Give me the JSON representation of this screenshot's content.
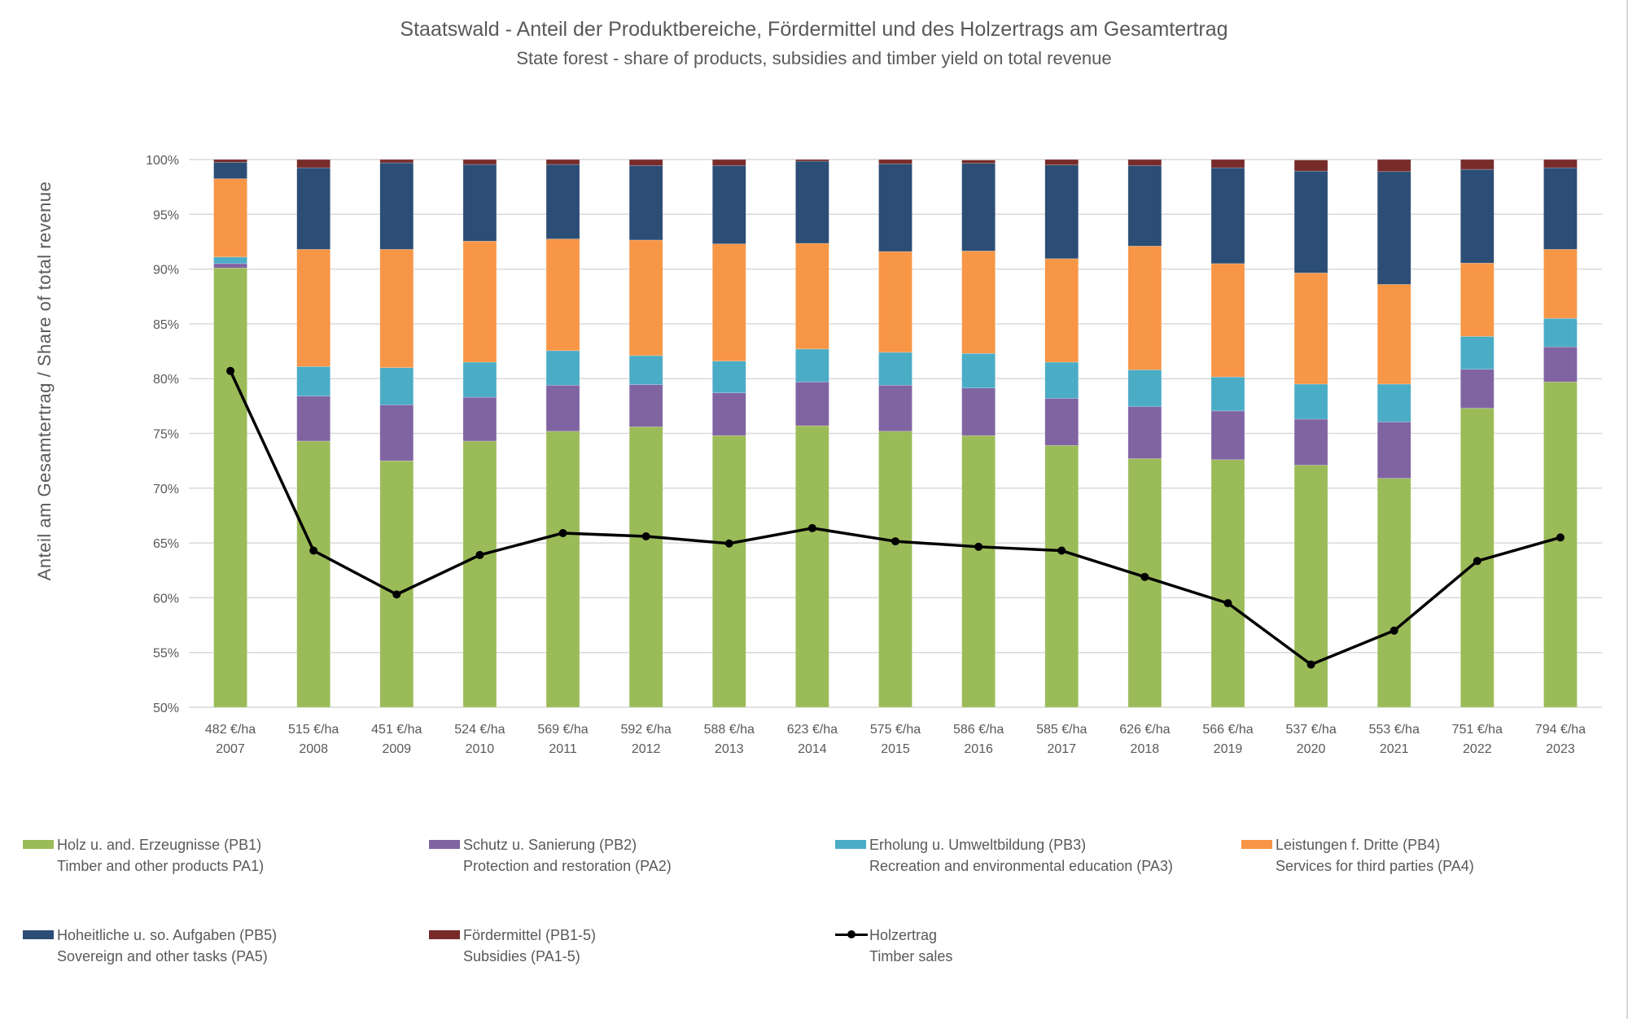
{
  "chart_data": {
    "type": "bar",
    "stacked": true,
    "title": "Staatswald - Anteil der Produktbereiche, Fördermittel und des Holzertrags am Gesamtertrag",
    "subtitle": "State forest - share of products, subsidies and timber yield on total revenue",
    "xlabel": "",
    "ylabel": "Anteil am Gesamtertrag / Share of total revenue",
    "ylim": [
      50,
      100
    ],
    "yticks": [
      "50%",
      "55%",
      "60%",
      "65%",
      "70%",
      "75%",
      "80%",
      "85%",
      "90%",
      "95%",
      "100%"
    ],
    "ytick_values": [
      50,
      55,
      60,
      65,
      70,
      75,
      80,
      85,
      90,
      95,
      100
    ],
    "grid": true,
    "legend_position": "bottom",
    "categories": [
      "2007",
      "2008",
      "2009",
      "2010",
      "2011",
      "2012",
      "2013",
      "2014",
      "2015",
      "2016",
      "2017",
      "2018",
      "2019",
      "2020",
      "2021",
      "2022",
      "2023"
    ],
    "category_values_per_ha": [
      "482 €/ha",
      "515 €/ha",
      "451 €/ha",
      "524 €/ha",
      "569 €/ha",
      "592 €/ha",
      "588 €/ha",
      "623 €/ha",
      "575 €/ha",
      "586 €/ha",
      "585 €/ha",
      "626 €/ha",
      "566 €/ha",
      "537 €/ha",
      "553 €/ha",
      "751 €/ha",
      "794 €/ha"
    ],
    "series": [
      {
        "name": "Holz u. and. Erzeugnisse (PB1)",
        "name_en": "Timber and other products PA1)",
        "color": "#9BBB59",
        "kind": "bar",
        "values": [
          90.1,
          74.3,
          72.5,
          74.3,
          75.2,
          75.6,
          74.8,
          75.7,
          75.2,
          74.8,
          73.9,
          72.7,
          72.6,
          72.1,
          70.9,
          77.3,
          79.7
        ]
      },
      {
        "name": "Schutz u. Sanierung (PB2)",
        "name_en": "Protection and restoration (PA2)",
        "color": "#8064A2",
        "kind": "bar",
        "values": [
          0.4,
          4.1,
          5.1,
          4.0,
          4.2,
          3.85,
          3.9,
          4.0,
          4.2,
          4.35,
          4.3,
          4.75,
          4.45,
          4.2,
          5.15,
          3.55,
          3.2
        ]
      },
      {
        "name": "Erholung u. Umweltbildung (PB3)",
        "name_en": "Recreation and environmental education (PA3)",
        "color": "#4BACC6",
        "kind": "bar",
        "values": [
          0.6,
          2.7,
          3.4,
          3.2,
          3.15,
          2.65,
          2.9,
          3.0,
          3.0,
          3.15,
          3.3,
          3.35,
          3.1,
          3.2,
          3.45,
          3.0,
          2.6
        ]
      },
      {
        "name": "Leistungen f. Dritte (PB4)",
        "name_en": "Services for third parties (PA4)",
        "color": "#F79646",
        "kind": "bar",
        "values": [
          7.15,
          10.7,
          10.8,
          11.05,
          10.2,
          10.55,
          10.7,
          9.65,
          9.2,
          9.35,
          9.45,
          11.3,
          10.35,
          10.15,
          9.1,
          6.7,
          6.3
        ]
      },
      {
        "name": "Hoheitliche u. so. Aufgaben (PB5)",
        "name_en": "Sovereign and other tasks (PA5)",
        "color": "#2C4D75",
        "kind": "bar",
        "values": [
          1.5,
          7.45,
          7.9,
          7.0,
          6.8,
          6.8,
          7.15,
          7.5,
          8.0,
          8.0,
          8.55,
          7.35,
          8.75,
          9.3,
          10.3,
          8.55,
          7.45
        ]
      },
      {
        "name": "Fördermittel (PB1-5)",
        "name_en": "Subsidies (PA1-5)",
        "color": "#772C2A",
        "kind": "bar",
        "values": [
          0.25,
          0.75,
          0.3,
          0.55,
          0.45,
          0.55,
          0.55,
          0.25,
          0.45,
          0.3,
          0.55,
          0.55,
          0.75,
          1.0,
          1.1,
          0.9,
          0.75
        ]
      },
      {
        "name": "Holzertrag",
        "name_en": "Timber sales",
        "color": "#000000",
        "kind": "line",
        "values": [
          80.7,
          64.3,
          60.3,
          63.9,
          65.9,
          65.6,
          64.95,
          66.35,
          65.15,
          64.65,
          64.3,
          61.9,
          59.5,
          53.9,
          57.0,
          63.35,
          65.5
        ]
      }
    ]
  }
}
